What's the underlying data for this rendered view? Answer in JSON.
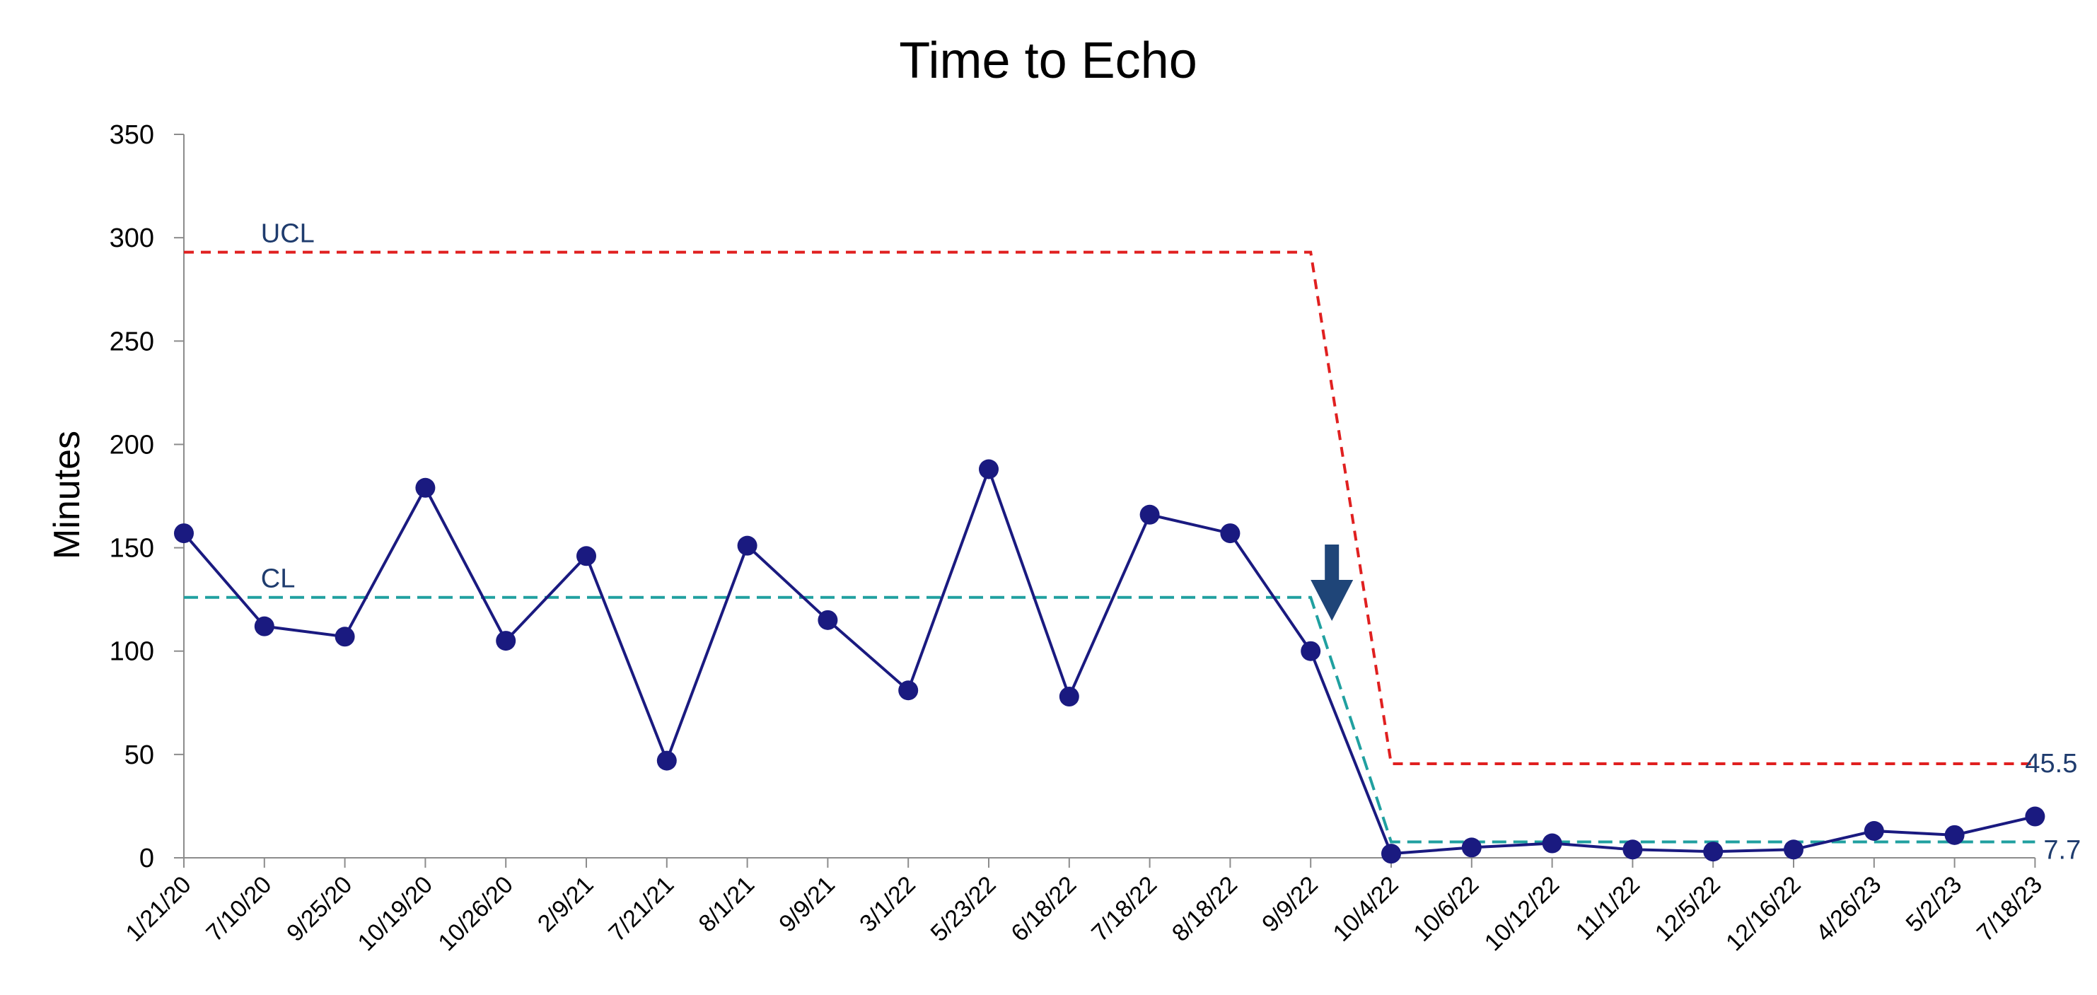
{
  "chart_data": {
    "type": "line",
    "title": "Time to Echo",
    "ylabel": "Minutes",
    "xlabel": "",
    "ylim": [
      0,
      350
    ],
    "yticks": [
      0,
      50,
      100,
      150,
      200,
      250,
      300,
      350
    ],
    "grid": false,
    "categories": [
      "1/21/20",
      "7/10/20",
      "9/25/20",
      "10/19/20",
      "10/26/20",
      "2/9/21",
      "7/21/21",
      "8/1/21",
      "9/9/21",
      "3/1/22",
      "5/23/22",
      "6/18/22",
      "7/18/22",
      "8/18/22",
      "9/9/22",
      "10/4/22",
      "10/6/22",
      "10/12/22",
      "11/1/22",
      "12/5/22",
      "12/16/22",
      "4/26/23",
      "5/2/23",
      "7/18/23"
    ],
    "series": [
      {
        "values": [
          157,
          112,
          107,
          179,
          105,
          146,
          47,
          151,
          115,
          81,
          188,
          78,
          166,
          157,
          100,
          2,
          5,
          7,
          4,
          3,
          4,
          13,
          11,
          20
        ],
        "color": "#1a1a80"
      }
    ],
    "control_limits": {
      "ucl": {
        "label": "UCL",
        "color": "#e02020",
        "segments": [
          {
            "from": 0,
            "to": 14,
            "value": 293
          },
          {
            "from": 15,
            "to": 23,
            "value": 45.5
          }
        ],
        "end_label": "45.5"
      },
      "cl": {
        "label": "CL",
        "color": "#20a0a0",
        "segments": [
          {
            "from": 0,
            "to": 14,
            "value": 126
          },
          {
            "from": 15,
            "to": 23,
            "value": 7.7
          }
        ],
        "end_label": "7.7"
      }
    },
    "marker": {
      "type": "arrow-down",
      "between": [
        14,
        15
      ],
      "color": "#1f4578"
    }
  }
}
